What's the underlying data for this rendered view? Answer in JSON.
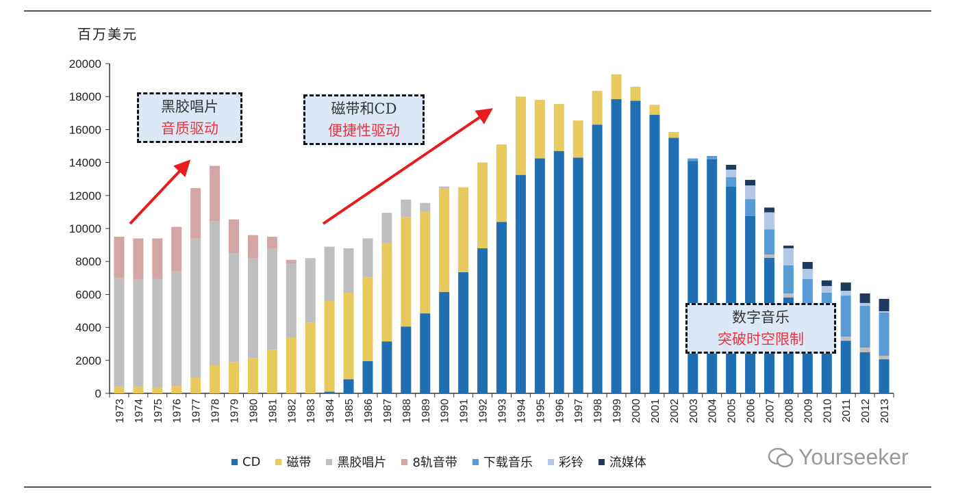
{
  "chart_data": {
    "type": "bar",
    "stacked": true,
    "ylabel": "百万美元",
    "ylim": [
      0,
      20000
    ],
    "yticks": [
      0,
      2000,
      4000,
      6000,
      8000,
      10000,
      12000,
      14000,
      16000,
      18000,
      20000
    ],
    "grid": false,
    "legend_position": "bottom",
    "categories": [
      "1973",
      "1974",
      "1975",
      "1976",
      "1977",
      "1978",
      "1979",
      "1980",
      "1981",
      "1982",
      "1983",
      "1984",
      "1985",
      "1986",
      "1987",
      "1988",
      "1989",
      "1990",
      "1991",
      "1992",
      "1993",
      "1994",
      "1995",
      "1996",
      "1997",
      "1998",
      "1999",
      "2000",
      "2001",
      "2002",
      "2003",
      "2004",
      "2005",
      "2006",
      "2007",
      "2008",
      "2009",
      "2010",
      "2011",
      "2012",
      "2013"
    ],
    "series": [
      {
        "name": "CD",
        "color": "#1f6fb2",
        "values": [
          0,
          0,
          0,
          0,
          0,
          0,
          0,
          0,
          0,
          0,
          0,
          100,
          850,
          1950,
          3150,
          4050,
          4850,
          6150,
          7350,
          8800,
          10400,
          13250,
          14250,
          14700,
          14300,
          16300,
          17850,
          17750,
          16900,
          15500,
          14100,
          14200,
          12530,
          10750,
          8220,
          5810,
          4300,
          3400,
          3190,
          2490,
          2070
        ]
      },
      {
        "name": "磁带",
        "color": "#e8c95e",
        "values": [
          400,
          400,
          350,
          450,
          950,
          1700,
          1900,
          2150,
          2650,
          3400,
          4300,
          5500,
          5250,
          5100,
          5950,
          6650,
          6150,
          6300,
          5150,
          5200,
          4700,
          4750,
          3550,
          2850,
          2250,
          2050,
          1500,
          850,
          600,
          350,
          0,
          0,
          0,
          0,
          0,
          0,
          0,
          0,
          0,
          0,
          0
        ]
      },
      {
        "name": "黑胶唱片",
        "color": "#bfbfbf",
        "values": [
          6600,
          6500,
          6600,
          6950,
          8450,
          8750,
          6600,
          6050,
          6150,
          4450,
          3900,
          3300,
          2700,
          2350,
          1850,
          1050,
          550,
          100,
          0,
          0,
          0,
          0,
          0,
          0,
          0,
          0,
          0,
          0,
          0,
          0,
          0,
          0,
          0,
          0,
          200,
          250,
          200,
          200,
          250,
          290,
          210
        ]
      },
      {
        "name": "8轨音带",
        "color": "#d4a5a5",
        "values": [
          2500,
          2500,
          2450,
          2700,
          3050,
          3350,
          2050,
          1400,
          700,
          250,
          0,
          0,
          0,
          0,
          0,
          0,
          0,
          0,
          0,
          0,
          0,
          0,
          0,
          0,
          0,
          0,
          0,
          0,
          0,
          0,
          0,
          0,
          0,
          0,
          0,
          0,
          0,
          0,
          0,
          0,
          0
        ]
      },
      {
        "name": "下载音乐",
        "color": "#5b9bd5",
        "values": [
          0,
          0,
          0,
          0,
          0,
          0,
          0,
          0,
          0,
          0,
          0,
          0,
          0,
          0,
          0,
          0,
          0,
          0,
          0,
          0,
          0,
          0,
          0,
          0,
          0,
          0,
          0,
          0,
          0,
          0,
          150,
          200,
          580,
          1030,
          1520,
          1700,
          2430,
          2500,
          2490,
          2530,
          2620
        ]
      },
      {
        "name": "彩铃",
        "color": "#b4c7e7",
        "values": [
          0,
          0,
          0,
          0,
          0,
          0,
          0,
          0,
          0,
          0,
          0,
          0,
          0,
          0,
          0,
          0,
          0,
          0,
          0,
          0,
          0,
          0,
          0,
          0,
          0,
          0,
          0,
          0,
          0,
          0,
          0,
          0,
          460,
          830,
          1040,
          1040,
          620,
          410,
          290,
          170,
          80
        ]
      },
      {
        "name": "流媒体",
        "color": "#1f3a5f",
        "values": [
          0,
          0,
          0,
          0,
          0,
          0,
          0,
          0,
          0,
          0,
          0,
          0,
          0,
          0,
          0,
          0,
          0,
          0,
          0,
          0,
          0,
          0,
          0,
          0,
          0,
          0,
          0,
          0,
          0,
          0,
          0,
          0,
          290,
          340,
          290,
          160,
          420,
          340,
          500,
          580,
          750
        ]
      }
    ],
    "annotations": [
      {
        "line1": "黑胶唱片",
        "line2": "音质驱动"
      },
      {
        "line1": "磁带和CD",
        "line2": "便捷性驱动"
      },
      {
        "line1": "数字音乐",
        "line2": "突破时空限制"
      }
    ]
  },
  "watermark": "Yourseeker"
}
